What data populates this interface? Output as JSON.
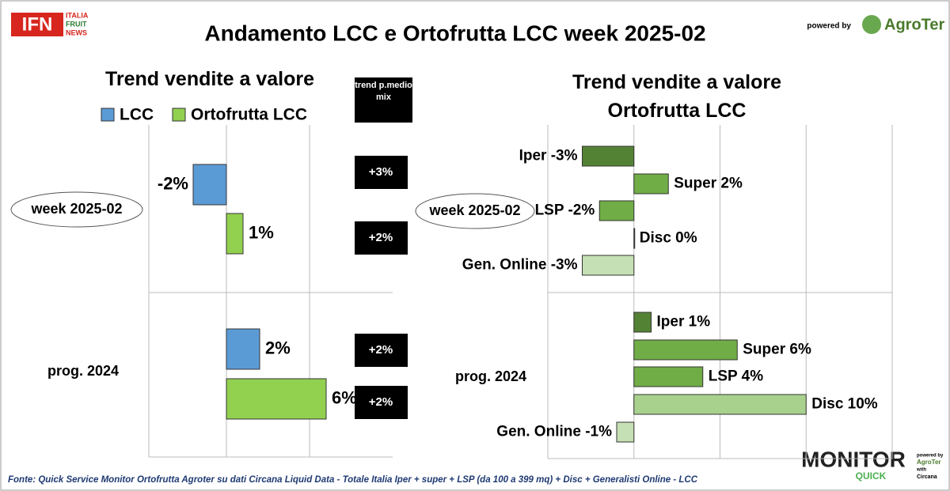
{
  "header": {
    "logo": "IFN",
    "logo_lines": [
      "ITALIA",
      "FRUIT",
      "NEWS"
    ],
    "title": "Andamento LCC e Ortofrutta LCC week 2025-02",
    "powered_by": "powered by",
    "brand": "AgroTer"
  },
  "chart_data": [
    {
      "type": "hbar",
      "title": "Trend vendite a valore",
      "categories": [
        "week 2025-02",
        "prog. 2024"
      ],
      "series": [
        {
          "name": "LCC",
          "color": "#5b9bd5",
          "values": [
            -2,
            2
          ],
          "value_labels": [
            "-2%",
            "2%"
          ]
        },
        {
          "name": "Ortofrutta LCC",
          "color": "#92d050",
          "values": [
            1,
            6
          ],
          "value_labels": [
            "1%",
            "6%"
          ]
        }
      ],
      "xlim": [
        -5,
        10
      ],
      "xticks": [
        -5,
        0,
        5
      ],
      "grid": true
    },
    {
      "type": "hbar",
      "title": "Trend vendite a valore Ortofrutta LCC",
      "categories": [
        "week 2025-02",
        "prog. 2024"
      ],
      "series": [
        {
          "color": "#548235",
          "values": [
            -3,
            1
          ],
          "value_labels": [
            "Iper -3%",
            "Iper 1%"
          ]
        },
        {
          "color": "#70ad47",
          "values": [
            2,
            6
          ],
          "value_labels": [
            "Super 2%",
            "Super 6%"
          ]
        },
        {
          "color": "#70ad47",
          "values": [
            -2,
            4
          ],
          "value_labels": [
            "LSP -2%",
            "LSP 4%"
          ]
        },
        {
          "color": "#a9d18e",
          "values": [
            0,
            10
          ],
          "value_labels": [
            "Disc 0%",
            "Disc 10%"
          ]
        },
        {
          "color": "#c5e0b4",
          "values": [
            -3,
            -1
          ],
          "value_labels": [
            "Gen. Online -3%",
            "Gen. Online -1%"
          ]
        }
      ],
      "xlim": [
        -5,
        15
      ],
      "xticks": [
        -5,
        0,
        5,
        10,
        15
      ],
      "grid": true
    }
  ],
  "trend": {
    "title": "trend p.medio mix",
    "labels": [
      "+3%",
      "+2%",
      "+2%",
      "+2%"
    ]
  },
  "footer": {
    "source": "Fonte: Quick Service Monitor Ortofrutta Agroter su dati Circana Liquid Data - Totale Italia Iper + super + LSP (da 100 a 399 mq) + Disc + Generalisti Online - LCC",
    "monitor": "MONITOR",
    "quick": "QUICK",
    "powered": "powered by",
    "brand": "AgroTer",
    "with": "with",
    "circana": "Circana"
  }
}
